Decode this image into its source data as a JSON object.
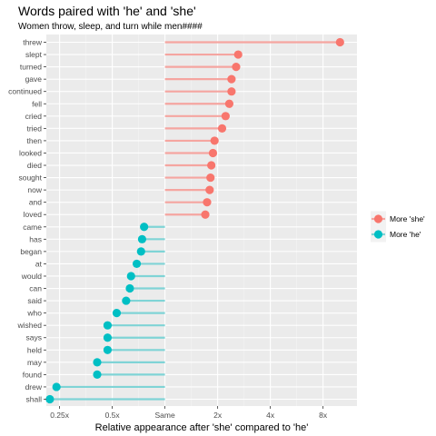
{
  "chart_data": {
    "type": "lollipop",
    "title": "Words paired with 'he' and 'she'",
    "subtitle": "Women throw, sleep, and turn while men####",
    "xlabel": "Relative appearance after 'she' compared to 'he'",
    "ylabel": "",
    "x_scale": "log2",
    "xlim": [
      0.21,
      12.5
    ],
    "x_ticks": [
      0.25,
      0.5,
      1,
      2,
      4,
      8
    ],
    "x_tick_labels": [
      "0.25x",
      "0.5x",
      "Same",
      "2x",
      "4x",
      "8x"
    ],
    "categories": [
      "threw",
      "slept",
      "turned",
      "gave",
      "continued",
      "fell",
      "cried",
      "tried",
      "then",
      "looked",
      "died",
      "sought",
      "now",
      "and",
      "loved",
      "came",
      "has",
      "began",
      "at",
      "would",
      "can",
      "said",
      "who",
      "wished",
      "says",
      "held",
      "may",
      "found",
      "drew",
      "shall"
    ],
    "values": [
      10.0,
      2.62,
      2.55,
      2.4,
      2.4,
      2.33,
      2.22,
      2.12,
      1.92,
      1.88,
      1.84,
      1.82,
      1.8,
      1.74,
      1.7,
      0.76,
      0.74,
      0.73,
      0.69,
      0.64,
      0.63,
      0.6,
      0.53,
      0.47,
      0.47,
      0.47,
      0.41,
      0.41,
      0.24,
      0.22
    ],
    "series": [
      {
        "name": "More 'she'",
        "color": "#F8766D",
        "segment_color": "#F5A5A0"
      },
      {
        "name": "More 'he'",
        "color": "#00BFC4",
        "segment_color": "#7FD4D6"
      }
    ],
    "legend_position": "right",
    "grid": true,
    "panel_background": "#EBEBEB"
  }
}
